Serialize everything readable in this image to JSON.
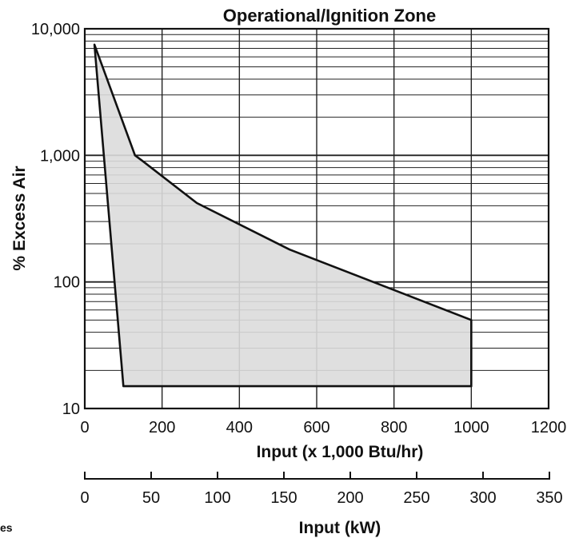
{
  "chart_data": {
    "type": "area",
    "title": "Operational/Ignition Zone",
    "ylabel": "% Excess Air",
    "xlabel": "Input (x 1,000 Btu/hr)",
    "x2label": "Input (kW)",
    "yscale": "log",
    "ylim": [
      10,
      10000
    ],
    "xlim": [
      0,
      1200
    ],
    "x2lim": [
      0,
      350
    ],
    "grid": true,
    "yticks": [
      10,
      100,
      1000,
      10000
    ],
    "ytick_labels": [
      "10",
      "100",
      "1,000",
      "10,000"
    ],
    "xticks": [
      0,
      200,
      400,
      600,
      800,
      1000,
      1200
    ],
    "xtick_labels": [
      "0",
      "200",
      "400",
      "600",
      "800",
      "1000",
      "1200"
    ],
    "x2ticks": [
      0,
      50,
      100,
      150,
      200,
      250,
      300,
      350
    ],
    "x2tick_labels": [
      "0",
      "50",
      "100",
      "150",
      "200",
      "250",
      "300",
      "350"
    ],
    "series": [
      {
        "points": [
          {
            "x": 25,
            "y": 7500
          },
          {
            "x": 130,
            "y": 1000
          },
          {
            "x": 150,
            "y": 900
          },
          {
            "x": 290,
            "y": 420
          },
          {
            "x": 530,
            "y": 180
          },
          {
            "x": 1000,
            "y": 50
          },
          {
            "x": 1000,
            "y": 15
          },
          {
            "x": 100,
            "y": 15
          },
          {
            "x": 25,
            "y": 7500
          }
        ]
      }
    ],
    "colors": {
      "fill": "#dcdcdc",
      "line": "#111111",
      "grid": "#222222"
    }
  },
  "footer_fragment": "es"
}
